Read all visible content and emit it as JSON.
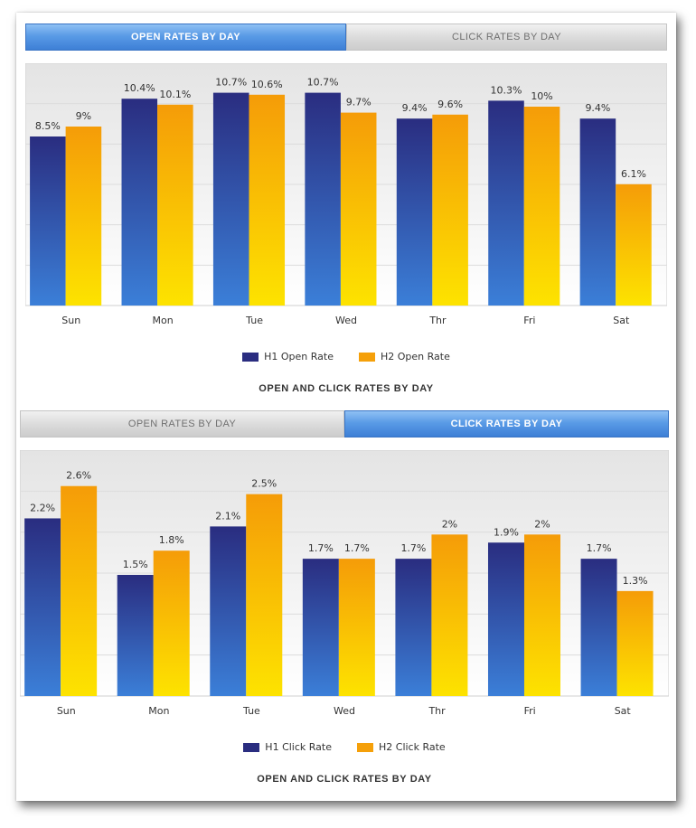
{
  "colors": {
    "h1_top": "#2a2d80",
    "h1_bottom": "#3b7fd8",
    "h2_top": "#f59c08",
    "h2_bottom": "#fde300",
    "grid": "#dcdcdc",
    "panel_top": "#e4e4e4",
    "panel_bottom": "#ffffff"
  },
  "panels": [
    {
      "tabs": [
        {
          "label": "OPEN RATES BY DAY",
          "active": true
        },
        {
          "label": "CLICK RATES BY DAY",
          "active": false
        }
      ],
      "legend": [
        "H1 Open Rate",
        "H2 Open Rate"
      ],
      "footer_title": "OPEN AND CLICK RATES BY DAY"
    },
    {
      "tabs": [
        {
          "label": "OPEN RATES BY DAY",
          "active": false
        },
        {
          "label": "CLICK RATES BY DAY",
          "active": true
        }
      ],
      "legend": [
        "H1 Click Rate",
        "H2 Click Rate"
      ],
      "footer_title": "OPEN AND CLICK RATES BY DAY"
    }
  ],
  "chart_data": [
    {
      "type": "bar",
      "title": "OPEN AND CLICK RATES BY DAY",
      "categories": [
        "Sun",
        "Mon",
        "Tue",
        "Wed",
        "Thr",
        "Fri",
        "Sat"
      ],
      "series": [
        {
          "name": "H1 Open Rate",
          "values": [
            8.5,
            10.4,
            10.7,
            10.7,
            9.4,
            10.3,
            9.4
          ],
          "labels": [
            "8.5%",
            "10.4%",
            "10.7%",
            "10.7%",
            "9.4%",
            "10.3%",
            "9.4%"
          ]
        },
        {
          "name": "H2 Open Rate",
          "values": [
            9,
            10.1,
            10.6,
            9.7,
            9.6,
            10,
            6.1
          ],
          "labels": [
            "9%",
            "10.1%",
            "10.6%",
            "9.7%",
            "9.6%",
            "10%",
            "6.1%"
          ]
        }
      ],
      "ylim": [
        0,
        12
      ],
      "grid": true,
      "legend": "bottom"
    },
    {
      "type": "bar",
      "title": "OPEN AND CLICK RATES BY DAY",
      "categories": [
        "Sun",
        "Mon",
        "Tue",
        "Wed",
        "Thr",
        "Fri",
        "Sat"
      ],
      "series": [
        {
          "name": "H1 Click Rate",
          "values": [
            2.2,
            1.5,
            2.1,
            1.7,
            1.7,
            1.9,
            1.7
          ],
          "labels": [
            "2.2%",
            "1.5%",
            "2.1%",
            "1.7%",
            "1.7%",
            "1.9%",
            "1.7%"
          ]
        },
        {
          "name": "H2 Click Rate",
          "values": [
            2.6,
            1.8,
            2.5,
            1.7,
            2,
            2,
            1.3
          ],
          "labels": [
            "2.6%",
            "1.8%",
            "2.5%",
            "1.7%",
            "2%",
            "2%",
            "1.3%"
          ]
        }
      ],
      "ylim": [
        0,
        3
      ],
      "grid": true,
      "legend": "bottom"
    }
  ]
}
